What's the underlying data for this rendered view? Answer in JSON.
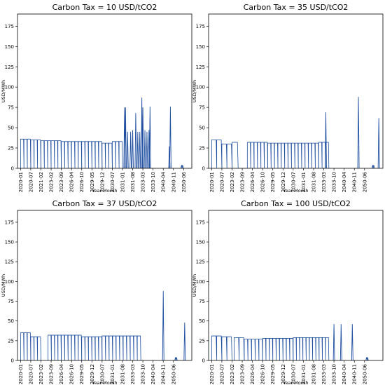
{
  "colors": {
    "line": "#1f4fa0",
    "line_dark": "#0c2a6e"
  },
  "chart_data": [
    {
      "type": "line",
      "title": "Carbon Tax = 10 USD/tCO2",
      "xlabel": "Year-Month",
      "ylabel": "USD/MWh",
      "ylim": [
        0,
        190
      ],
      "yticks": [
        0,
        25,
        50,
        75,
        100,
        125,
        150,
        175
      ],
      "xticks": [
        "2020-01",
        "2020-07",
        "2021-02",
        "2023-02",
        "2023-09",
        "2026-04",
        "2026-10",
        "2029-05",
        "2029-12",
        "2030-07",
        "2031-01",
        "2031-08",
        "2033-03",
        "2033-10",
        "2040-04",
        "2040-11",
        "2050-06"
      ],
      "bands": [
        {
          "x_from": 0.0,
          "x_to": 1.0,
          "level": 36,
          "spikes_per_tick": 3
        },
        {
          "x_from": 1.0,
          "x_to": 2.0,
          "level": 35,
          "spikes_per_tick": 3
        },
        {
          "x_from": 2.0,
          "x_to": 4.0,
          "level": 34,
          "spikes_per_tick": 3
        },
        {
          "x_from": 4.0,
          "x_to": 6.0,
          "level": 33,
          "spikes_per_tick": 3
        },
        {
          "x_from": 6.0,
          "x_to": 8.0,
          "level": 33,
          "spikes_per_tick": 3
        },
        {
          "x_from": 8.0,
          "x_to": 9.0,
          "level": 31,
          "spikes_per_tick": 3
        },
        {
          "x_from": 9.0,
          "x_to": 10.0,
          "level": 33,
          "spikes_per_tick": 3
        }
      ],
      "peaks": [
        {
          "x": 10.2,
          "y": 75
        },
        {
          "x": 10.3,
          "y": 75
        },
        {
          "x": 10.5,
          "y": 45
        },
        {
          "x": 10.8,
          "y": 45
        },
        {
          "x": 11.0,
          "y": 47
        },
        {
          "x": 11.3,
          "y": 68
        },
        {
          "x": 11.5,
          "y": 45
        },
        {
          "x": 11.7,
          "y": 45
        },
        {
          "x": 11.9,
          "y": 87
        },
        {
          "x": 12.0,
          "y": 75
        },
        {
          "x": 12.2,
          "y": 47
        },
        {
          "x": 12.4,
          "y": 45
        },
        {
          "x": 12.6,
          "y": 47
        },
        {
          "x": 12.7,
          "y": 76
        },
        {
          "x": 14.6,
          "y": 27
        },
        {
          "x": 14.7,
          "y": 76
        },
        {
          "x": 15.8,
          "y": 4
        },
        {
          "x": 15.9,
          "y": 4
        }
      ]
    },
    {
      "type": "line",
      "title": "Carbon Tax = 35 USD/tCO2",
      "xlabel": "Year-Month",
      "ylabel": "USD/MWh",
      "ylim": [
        0,
        190
      ],
      "yticks": [
        0,
        25,
        50,
        75,
        100,
        125,
        150,
        175
      ],
      "xticks": [
        "2020-01",
        "2020-07",
        "2023-02",
        "2023-09",
        "2026-04",
        "2026-10",
        "2029-05",
        "2029-12",
        "2030-07",
        "2031-01",
        "2031-08",
        "2033-03",
        "2033-10",
        "2040-04",
        "2040-11",
        "2050-06"
      ],
      "bands": [
        {
          "x_from": 0.0,
          "x_to": 1.0,
          "level": 35,
          "spikes_per_tick": 2
        },
        {
          "x_from": 1.0,
          "x_to": 2.0,
          "level": 30,
          "spikes_per_tick": 2
        },
        {
          "x_from": 2.0,
          "x_to": 2.6,
          "level": 32,
          "spikes_per_tick": 2
        },
        {
          "x_from": 3.5,
          "x_to": 5.5,
          "level": 32,
          "spikes_per_tick": 3
        },
        {
          "x_from": 5.5,
          "x_to": 7.5,
          "level": 31,
          "spikes_per_tick": 3
        },
        {
          "x_from": 7.5,
          "x_to": 10.5,
          "level": 31,
          "spikes_per_tick": 3
        },
        {
          "x_from": 10.5,
          "x_to": 11.5,
          "level": 32,
          "spikes_per_tick": 3
        }
      ],
      "peaks": [
        {
          "x": 11.2,
          "y": 69
        },
        {
          "x": 14.4,
          "y": 88
        },
        {
          "x": 15.8,
          "y": 4
        },
        {
          "x": 15.9,
          "y": 4
        },
        {
          "x": 16.4,
          "y": 62
        }
      ]
    },
    {
      "type": "line",
      "title": "Carbon Tax = 37 USD/tCO2",
      "xlabel": "Year-Month",
      "ylabel": "USD/MWh",
      "ylim": [
        0,
        190
      ],
      "yticks": [
        0,
        25,
        50,
        75,
        100,
        125,
        150,
        175
      ],
      "xticks": [
        "2020-01",
        "2020-07",
        "2023-02",
        "2023-09",
        "2026-04",
        "2026-10",
        "2029-05",
        "2029-12",
        "2030-07",
        "2031-01",
        "2031-08",
        "2033-03",
        "2033-10",
        "2040-04",
        "2040-11",
        "2050-06"
      ],
      "bands": [
        {
          "x_from": 0.0,
          "x_to": 1.0,
          "level": 35,
          "spikes_per_tick": 3
        },
        {
          "x_from": 1.0,
          "x_to": 2.0,
          "level": 30,
          "spikes_per_tick": 3
        },
        {
          "x_from": 2.7,
          "x_to": 4.0,
          "level": 32,
          "spikes_per_tick": 3
        },
        {
          "x_from": 4.0,
          "x_to": 6.0,
          "level": 32,
          "spikes_per_tick": 3
        },
        {
          "x_from": 6.0,
          "x_to": 8.0,
          "level": 30,
          "spikes_per_tick": 3
        },
        {
          "x_from": 8.0,
          "x_to": 11.8,
          "level": 31,
          "spikes_per_tick": 3
        }
      ],
      "peaks": [
        {
          "x": 14.0,
          "y": 88
        },
        {
          "x": 15.2,
          "y": 4
        },
        {
          "x": 15.3,
          "y": 4
        },
        {
          "x": 16.1,
          "y": 48
        }
      ]
    },
    {
      "type": "line",
      "title": "Carbon Tax = 100 USD/tCO2",
      "xlabel": "Year-Month",
      "ylabel": "USD/MWh",
      "ylim": [
        0,
        190
      ],
      "yticks": [
        0,
        25,
        50,
        75,
        100,
        125,
        150,
        175
      ],
      "xticks": [
        "2020-01",
        "2020-07",
        "2023-02",
        "2023-09",
        "2026-04",
        "2026-10",
        "2029-05",
        "2029-12",
        "2030-07",
        "2031-01",
        "2031-08",
        "2033-03",
        "2033-10",
        "2040-04",
        "2040-11",
        "2050-06"
      ],
      "bands": [
        {
          "x_from": 0.0,
          "x_to": 1.0,
          "level": 31,
          "spikes_per_tick": 2
        },
        {
          "x_from": 1.0,
          "x_to": 2.0,
          "level": 30,
          "spikes_per_tick": 2
        },
        {
          "x_from": 2.2,
          "x_to": 3.2,
          "level": 29,
          "spikes_per_tick": 2
        },
        {
          "x_from": 3.2,
          "x_to": 5.0,
          "level": 27,
          "spikes_per_tick": 3
        },
        {
          "x_from": 5.0,
          "x_to": 8.0,
          "level": 28,
          "spikes_per_tick": 3
        },
        {
          "x_from": 8.0,
          "x_to": 11.5,
          "level": 29,
          "spikes_per_tick": 3
        }
      ],
      "peaks": [
        {
          "x": 12.0,
          "y": 46
        },
        {
          "x": 12.7,
          "y": 46
        },
        {
          "x": 13.8,
          "y": 46
        },
        {
          "x": 15.2,
          "y": 4
        },
        {
          "x": 15.3,
          "y": 4
        }
      ]
    }
  ]
}
